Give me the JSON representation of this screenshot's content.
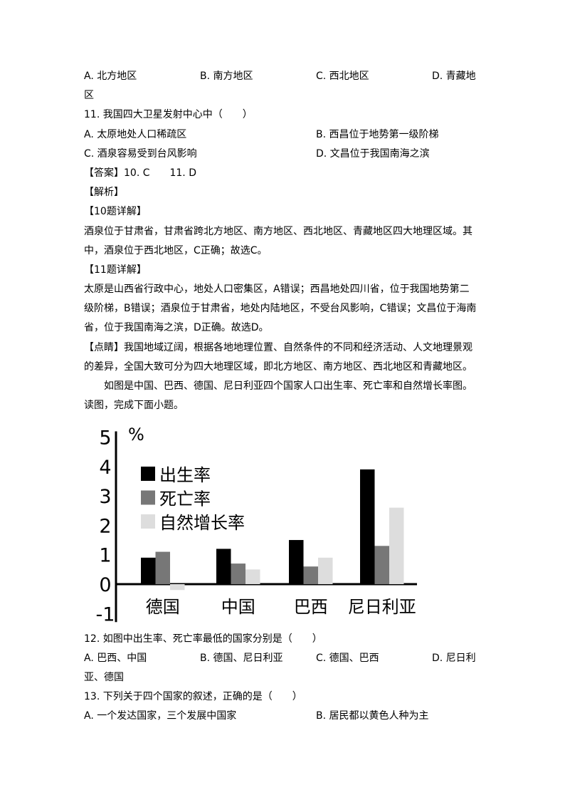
{
  "q10_options": {
    "a": "A. 北方地区",
    "b": "B. 南方地区",
    "c": "C. 西北地区",
    "d": "D. 青藏地区"
  },
  "q11": {
    "stem": "11. 我国四大卫星发射中心中（　　）",
    "a": "A. 太原地处人口稀疏区",
    "b": "B. 西昌位于地势第一级阶梯",
    "c": "C. 酒泉容易受到台风影响",
    "d": "D. 文昌位于我国南海之滨"
  },
  "answer": "【答案】10. C　　11. D",
  "analysis_label": "【解析】",
  "q10_detail_label": "【10题详解】",
  "q10_detail": [
    "酒泉位于甘肃省，甘肃省跨北方地区、南方地区、西北地区、青藏地区四大地理区域。其",
    "中，酒泉位于西北地区，C正确；故选C。"
  ],
  "q11_detail_label": "【11题详解】",
  "q11_detail": [
    "太原是山西省行政中心，地处人口密集区，A错误；西昌地处四川省，位于我国地势第二",
    "级阶梯，B错误；酒泉位于甘肃省，地处内陆地区，不受台风影响，C错误；文昌位于海南",
    "省，位于我国南海之滨，D正确。故选D。"
  ],
  "tip": [
    "【点睛】我国地域辽阔，根据各地地理位置、自然条件的不同和经济活动、人文地理景观",
    "的差异，全国大致可分为四大地理区域，即北方地区、南方地区、西北地区和青藏地区。"
  ],
  "intro": [
    "如图是中国、巴西、德国、尼日利亚四个国家人口出生率、死亡率和自然增长率图。",
    "读图，完成下面小题。"
  ],
  "chart_data": {
    "type": "bar",
    "unit_label": "%",
    "categories": [
      "德国",
      "中国",
      "巴西",
      "尼日利亚"
    ],
    "series": [
      {
        "name": "出生率",
        "values": [
          0.9,
          1.2,
          1.5,
          3.9
        ],
        "color": "#000000"
      },
      {
        "name": "死亡率",
        "values": [
          1.1,
          0.7,
          0.6,
          1.3
        ],
        "color": "#777777"
      },
      {
        "name": "自然增长率",
        "values": [
          -0.2,
          0.5,
          0.9,
          2.6
        ],
        "color": "#dddddd"
      }
    ],
    "yticks": [
      "5",
      "4",
      "3",
      "2",
      "1",
      "0",
      "-1"
    ],
    "ylim": [
      -1,
      5
    ],
    "legend": "top-left",
    "grid": false
  },
  "q12": {
    "stem": "12. 如图中出生率、死亡率最低的国家分别是（　　）",
    "a": "A. 巴西、中国",
    "b": "B. 德国、尼日利亚",
    "c": "C. 德国、巴西",
    "d": "D. 尼日利亚、德国"
  },
  "q13": {
    "stem": "13. 下列关于四个国家的叙述，正确的是（　　）",
    "a": "A. 一个发达国家，三个发展中国家",
    "b": "B. 居民都以黄色人种为主"
  }
}
